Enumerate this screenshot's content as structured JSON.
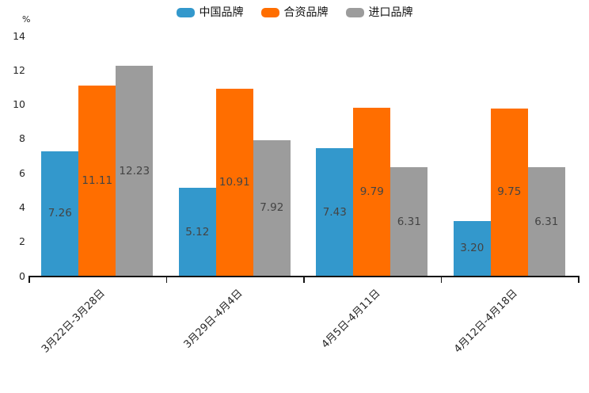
{
  "chart_data": {
    "type": "bar",
    "title": "",
    "unit_label": "%",
    "categories": [
      "3月22日-3月28日",
      "3月29日-4月4日",
      "4月5日-4月11日",
      "4月12日-4月18日"
    ],
    "series": [
      {
        "name": "中国品牌",
        "color": "#3398CC",
        "values": [
          7.26,
          5.12,
          7.43,
          3.2
        ],
        "data_labels": [
          "7.26",
          "5.12",
          "7.43",
          "3.20"
        ]
      },
      {
        "name": "合资品牌",
        "color": "#FF6E00",
        "values": [
          11.11,
          10.91,
          9.79,
          9.75
        ],
        "data_labels": [
          "11.11",
          "10.91",
          "9.79",
          "9.75"
        ]
      },
      {
        "name": "进口品牌",
        "color": "#9C9C9C",
        "values": [
          12.23,
          7.92,
          6.31,
          6.31
        ],
        "data_labels": [
          "12.23",
          "7.92",
          "6.31",
          "6.31"
        ]
      }
    ],
    "y_axis": {
      "min": 0,
      "max": 14,
      "ticks": [
        0,
        2,
        4,
        6,
        8,
        10,
        12,
        14
      ]
    },
    "legend_position": "top",
    "grid": false,
    "value_label_color": "#444444"
  }
}
